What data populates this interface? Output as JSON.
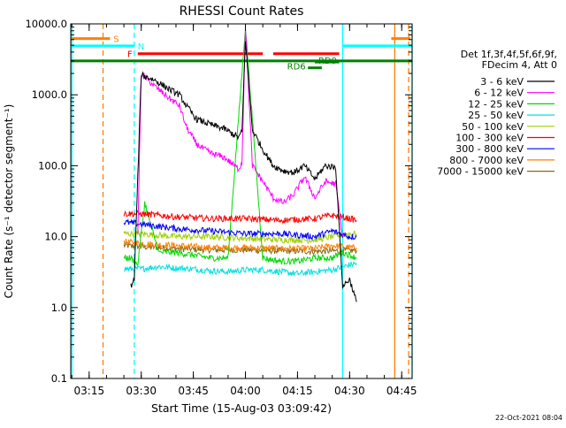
{
  "chart_data": {
    "type": "line",
    "title": "RHESSI Count Rates",
    "xlabel": "Start Time (15-Aug-03 03:09:42)",
    "ylabel": "Count Rate (s⁻¹ detector segment⁻¹)",
    "ylog": true,
    "ylim": [
      0.1,
      10000
    ],
    "xlim": [
      "03:09:42",
      "04:48:00"
    ],
    "x_ticks": [
      "03:15",
      "03:30",
      "03:45",
      "04:00",
      "04:15",
      "04:30",
      "04:45"
    ],
    "y_ticks": [
      "0.1",
      "1.0",
      "10.0",
      "100.0",
      "1000.0",
      "10000.0"
    ],
    "legend_header": [
      "Det 1f,3f,4f,5f,6f,9f,",
      "FDecim 4, Att 0"
    ],
    "legend_position": "right",
    "footer": "22-Oct-2021 08:04",
    "data_start": "03:25",
    "data_end": "04:33",
    "series": [
      {
        "name": "3 - 6 keV",
        "color": "#000000",
        "x": [
          "03:27",
          "03:28",
          "03:30",
          "03:34",
          "03:38",
          "03:41",
          "03:43",
          "03:46",
          "03:50",
          "03:54",
          "03:58",
          "03:59",
          "04:00",
          "04:02",
          "04:05",
          "04:08",
          "04:11",
          "04:14",
          "04:17",
          "04:20",
          "04:23",
          "04:26",
          "04:28",
          "04:30",
          "04:32"
        ],
        "values": [
          2,
          2.5,
          1900,
          1600,
          1200,
          1000,
          700,
          450,
          380,
          330,
          250,
          300,
          6000,
          320,
          170,
          100,
          85,
          80,
          100,
          65,
          100,
          95,
          2,
          2.5,
          1.2
        ]
      },
      {
        "name": "6 - 12 keV",
        "color": "#ff00ff",
        "x": [
          "03:29",
          "03:30",
          "03:34",
          "03:38",
          "03:41",
          "03:43",
          "03:46",
          "03:50",
          "03:54",
          "03:58",
          "03:59",
          "04:00",
          "04:02",
          "04:05",
          "04:08",
          "04:11",
          "04:14",
          "04:17",
          "04:20",
          "04:23",
          "04:26",
          "04:28"
        ],
        "values": [
          10,
          2000,
          1300,
          900,
          700,
          350,
          200,
          150,
          130,
          90,
          110,
          9000,
          100,
          60,
          35,
          30,
          40,
          70,
          35,
          60,
          55,
          10
        ]
      },
      {
        "name": "12 - 25 keV",
        "color": "#00d800",
        "x": [
          "03:25",
          "03:27",
          "03:29",
          "03:31",
          "03:35",
          "03:40",
          "03:45",
          "03:50",
          "03:55",
          "04:00",
          "04:05",
          "04:10",
          "04:15",
          "04:20",
          "04:25",
          "04:28",
          "04:30",
          "04:32"
        ],
        "values": [
          5,
          5,
          4,
          30,
          6,
          6,
          5.5,
          5,
          5,
          9000,
          5,
          4.5,
          4.5,
          5,
          5,
          6,
          5.5,
          5
        ]
      },
      {
        "name": "25 - 50 keV",
        "color": "#00e0e0",
        "x": [
          "03:25",
          "03:30",
          "03:35",
          "03:40",
          "03:45",
          "03:50",
          "03:55",
          "04:00",
          "04:05",
          "04:10",
          "04:15",
          "04:20",
          "04:25",
          "04:30",
          "04:32"
        ],
        "values": [
          3.5,
          3.5,
          3.8,
          3.6,
          3.5,
          3.3,
          3.2,
          3.4,
          3.4,
          3.2,
          3.0,
          3.2,
          3.4,
          4.0,
          4.2
        ]
      },
      {
        "name": "50 - 100 keV",
        "color": "#a0d000",
        "x": [
          "03:25",
          "03:30",
          "03:40",
          "03:50",
          "04:00",
          "04:10",
          "04:20",
          "04:25",
          "04:30",
          "04:32"
        ],
        "values": [
          11,
          11,
          10,
          10,
          9.5,
          9,
          9,
          10,
          11,
          11
        ]
      },
      {
        "name": "100 - 300 keV",
        "color": "#ff0000",
        "x": [
          "03:25",
          "03:30",
          "03:40",
          "03:50",
          "04:00",
          "04:10",
          "04:20",
          "04:25",
          "04:30",
          "04:32"
        ],
        "values": [
          21,
          21,
          19,
          18,
          18,
          17,
          18,
          20,
          18,
          17
        ]
      },
      {
        "name": "300 - 800 keV",
        "color": "#0000ff",
        "x": [
          "03:25",
          "03:30",
          "03:40",
          "03:50",
          "04:00",
          "04:10",
          "04:20",
          "04:25",
          "04:30",
          "04:32"
        ],
        "values": [
          16,
          15,
          13,
          12,
          11,
          11,
          10,
          12,
          10,
          10
        ]
      },
      {
        "name": "800 - 7000 keV",
        "color": "#ff8000",
        "x": [
          "03:25",
          "03:30",
          "03:40",
          "03:50",
          "04:00",
          "04:10",
          "04:20",
          "04:25",
          "04:30",
          "04:32"
        ],
        "values": [
          8.5,
          8,
          7.5,
          7,
          7,
          6.8,
          6.8,
          7.5,
          7,
          7
        ]
      },
      {
        "name": "7000 - 15000 keV",
        "color": "#8b6914",
        "x": [
          "03:25",
          "03:30",
          "03:40",
          "03:50",
          "04:00",
          "04:10",
          "04:20",
          "04:32"
        ],
        "values": [
          7.5,
          7.2,
          6.8,
          6.5,
          6.5,
          6.3,
          6.2,
          6.4
        ]
      }
    ],
    "flag_bars": [
      {
        "label": "S",
        "color": "#ff8000",
        "y": 6200,
        "segments": [
          [
            "03:09:42",
            "03:21"
          ],
          [
            "04:42",
            "04:47:30"
          ]
        ]
      },
      {
        "label": "N",
        "color": "#00ffff",
        "y": 4900,
        "segments": [
          [
            "03:09:42",
            "03:28"
          ],
          [
            "04:28",
            "04:48"
          ]
        ]
      },
      {
        "label": "F",
        "color": "#ff0000",
        "y": 3800,
        "segments": [
          [
            "03:29",
            "04:05"
          ],
          [
            "04:08",
            "04:27"
          ]
        ]
      },
      {
        "label": "",
        "color": "#008000",
        "y": 3000,
        "segments": [
          [
            "03:09:42",
            "04:48"
          ]
        ]
      },
      {
        "label": "RD9",
        "color": "#008000",
        "y": 2900,
        "segments": [
          [
            "04:20",
            "04:27"
          ]
        ]
      },
      {
        "label": "RD6",
        "color": "#008000",
        "y": 2400,
        "segments": [
          [
            "04:18",
            "04:22"
          ]
        ]
      }
    ],
    "vlines": [
      {
        "x": "03:19",
        "color": "#ff8000",
        "dashed": true
      },
      {
        "x": "03:28",
        "color": "#00ffff",
        "dashed": true
      },
      {
        "x": "03:10",
        "color": "#00ffff",
        "dashed": false
      },
      {
        "x": "04:28",
        "color": "#00ffff",
        "dashed": false
      },
      {
        "x": "04:43",
        "color": "#ff8000",
        "dashed": false
      },
      {
        "x": "04:47",
        "color": "#ff8000",
        "dashed": true
      },
      {
        "x": "04:48",
        "color": "#00ffff",
        "dashed": false
      }
    ]
  }
}
